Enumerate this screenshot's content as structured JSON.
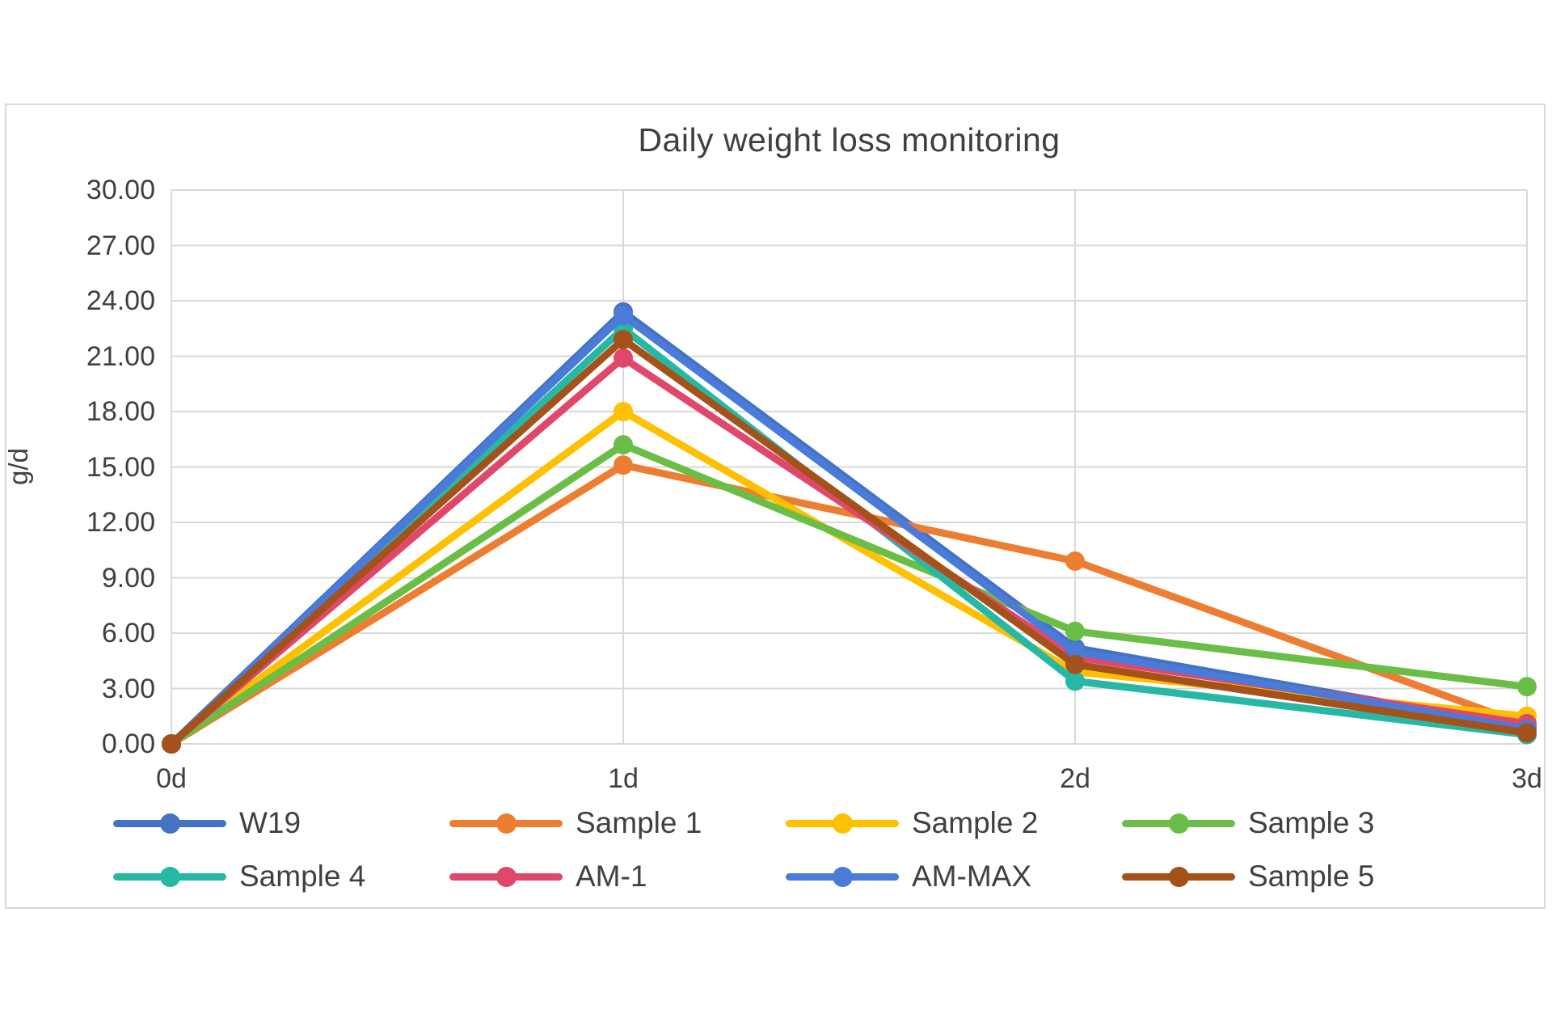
{
  "chart": {
    "panel_border_color": "#d9d9d9",
    "background_color": "#ffffff"
  },
  "chart_data": {
    "type": "line",
    "title": "Daily weight loss monitoring",
    "xlabel": "",
    "ylabel": "g/d",
    "categories": [
      "0d",
      "1d",
      "2d",
      "3d"
    ],
    "ylim": [
      0,
      30
    ],
    "ytick_step": 3,
    "ytick_labels": [
      "30.00",
      "27.00",
      "24.00",
      "21.00",
      "18.00",
      "15.00",
      "12.00",
      "9.00",
      "6.00",
      "3.00",
      "0.00"
    ],
    "grid": true,
    "gridline_color": "#d9d9d9",
    "text_color": "#404040",
    "title_color": "#3f3f3f",
    "legend_position": "bottom",
    "marker": "circle",
    "series": [
      {
        "name": "W19",
        "color": "#4472C4",
        "values": [
          0.0,
          23.4,
          5.2,
          0.9
        ]
      },
      {
        "name": "Sample 1",
        "color": "#ED7D31",
        "values": [
          0.0,
          15.1,
          9.9,
          1.0
        ]
      },
      {
        "name": "Sample 2",
        "color": "#FFC000",
        "values": [
          0.0,
          18.0,
          3.9,
          1.5
        ]
      },
      {
        "name": "Sample 3",
        "color": "#6BBE45",
        "values": [
          0.0,
          16.2,
          6.1,
          3.1
        ]
      },
      {
        "name": "Sample 4",
        "color": "#27B8A5",
        "values": [
          0.0,
          22.5,
          3.4,
          0.5
        ]
      },
      {
        "name": "AM-1",
        "color": "#E0486B",
        "values": [
          0.0,
          20.9,
          4.7,
          1.1
        ]
      },
      {
        "name": "AM-MAX",
        "color": "#4A7BD9",
        "values": [
          0.0,
          23.2,
          5.0,
          0.8
        ]
      },
      {
        "name": "Sample 5",
        "color": "#A5511A",
        "values": [
          0.0,
          21.9,
          4.3,
          0.6
        ]
      }
    ]
  }
}
